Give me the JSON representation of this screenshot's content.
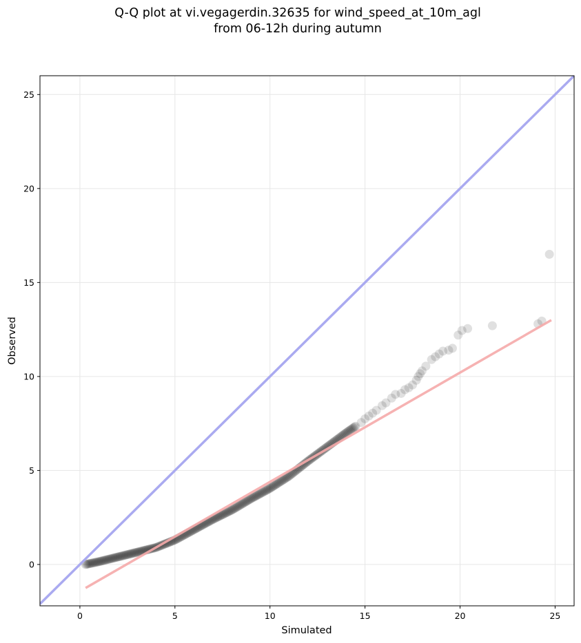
{
  "chart_data": {
    "type": "scatter",
    "title": "Q-Q plot at vi.vegagerdin.32635 for wind_speed_at_10m_agl",
    "subtitle": "from 06-12h during autumn",
    "xlabel": "Simulated",
    "ylabel": "Observed",
    "xlim": [
      -2.1,
      26.0
    ],
    "ylim": [
      -2.2,
      26.0
    ],
    "xticks": [
      0,
      5,
      10,
      15,
      20,
      25
    ],
    "yticks": [
      0,
      5,
      10,
      15,
      20,
      25
    ],
    "xtick_labels": [
      "0",
      "5",
      "10",
      "15",
      "20",
      "25"
    ],
    "ytick_labels": [
      "0",
      "5",
      "10",
      "15",
      "20",
      "25"
    ],
    "grid": true,
    "colors": {
      "points": "#000000",
      "identity_line": "#aaaaf0",
      "fit_line": "#f5aaaa"
    },
    "identity_line": {
      "x": [
        -2.1,
        26.0
      ],
      "y": [
        -2.1,
        26.0
      ]
    },
    "fit_line": {
      "x": [
        0.3,
        24.8
      ],
      "y": [
        -1.25,
        13.0
      ]
    },
    "quantile_curve": {
      "x": [
        0.3,
        1.0,
        2.0,
        3.0,
        4.0,
        5.0,
        6.0,
        7.0,
        8.0,
        9.0,
        10.0,
        11.0,
        12.0,
        13.0,
        14.0,
        14.5
      ],
      "y": [
        0.0,
        0.15,
        0.4,
        0.65,
        0.9,
        1.3,
        1.85,
        2.4,
        2.9,
        3.5,
        4.05,
        4.7,
        5.5,
        6.25,
        7.0,
        7.35
      ]
    },
    "tail_points": {
      "x": [
        14.8,
        15.0,
        15.2,
        15.4,
        15.6,
        15.9,
        16.1,
        16.4,
        16.6,
        16.9,
        17.1,
        17.3,
        17.5,
        17.7,
        17.8,
        17.9,
        18.0,
        18.2,
        18.5,
        18.7,
        18.9,
        19.1,
        19.4,
        19.6,
        19.9,
        20.1,
        20.4,
        21.7,
        24.1,
        24.3,
        24.7
      ],
      "y": [
        7.55,
        7.75,
        7.9,
        8.05,
        8.2,
        8.45,
        8.6,
        8.85,
        9.05,
        9.1,
        9.3,
        9.4,
        9.55,
        9.8,
        10.0,
        10.15,
        10.3,
        10.55,
        10.9,
        11.05,
        11.2,
        11.35,
        11.4,
        11.5,
        12.2,
        12.45,
        12.55,
        12.7,
        12.8,
        12.95,
        16.5
      ]
    }
  }
}
